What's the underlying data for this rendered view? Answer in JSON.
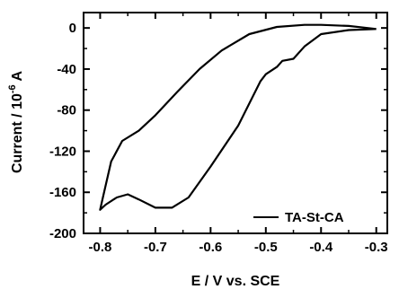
{
  "chart_data": {
    "type": "line",
    "title": "",
    "xlabel": "E / V vs. SCE",
    "ylabel_main": "Current / 10",
    "ylabel_exp": "-6",
    "ylabel_unit": " A",
    "xlim": [
      -0.83,
      -0.28
    ],
    "ylim": [
      -200,
      15
    ],
    "xticks": [
      -0.8,
      -0.7,
      -0.6,
      -0.5,
      -0.4,
      -0.3
    ],
    "xtick_labels": [
      "-0.8",
      "-0.7",
      "-0.6",
      "-0.5",
      "-0.4",
      "-0.3"
    ],
    "yticks": [
      0,
      -40,
      -80,
      -120,
      -160,
      -200
    ],
    "ytick_labels": [
      "0",
      "-40",
      "-80",
      "-120",
      "-160",
      "-200"
    ],
    "grid": false,
    "legend_position": "bottom-right",
    "series": [
      {
        "name": "TA-St-CA",
        "color": "#000000",
        "x": [
          -0.3,
          -0.35,
          -0.4,
          -0.43,
          -0.45,
          -0.47,
          -0.48,
          -0.5,
          -0.51,
          -0.55,
          -0.6,
          -0.64,
          -0.67,
          -0.7,
          -0.73,
          -0.75,
          -0.77,
          -0.79,
          -0.8,
          -0.795,
          -0.78,
          -0.76,
          -0.73,
          -0.7,
          -0.66,
          -0.62,
          -0.58,
          -0.53,
          -0.48,
          -0.43,
          -0.4,
          -0.35,
          -0.3
        ],
        "y": [
          -1,
          -2,
          -6,
          -18,
          -30,
          -32,
          -38,
          -45,
          -52,
          -95,
          -135,
          -165,
          -175,
          -175,
          -167,
          -162,
          -165,
          -172,
          -177,
          -165,
          -130,
          -110,
          -100,
          -85,
          -62,
          -40,
          -22,
          -6,
          1,
          3,
          3,
          2,
          -1
        ]
      }
    ]
  }
}
